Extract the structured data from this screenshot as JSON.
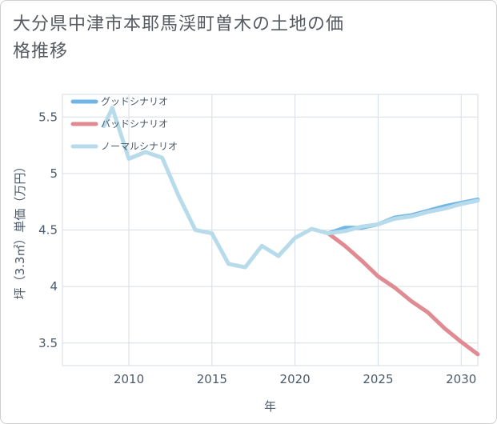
{
  "chart_data": {
    "type": "line",
    "title": "大分県中津市本耶馬渓町曽木の土地の価格推移",
    "xlabel": "年",
    "ylabel": "坪（3.3㎡）単価（万円）",
    "xlim": [
      2006,
      2031
    ],
    "ylim": [
      3.3,
      5.7
    ],
    "x_ticks": [
      "2010",
      "2015",
      "2020",
      "2025",
      "2030"
    ],
    "y_ticks": [
      "3.5",
      "4",
      "4.5",
      "5",
      "5.5"
    ],
    "grid": true,
    "legend_position": "top-left",
    "series": [
      {
        "name": "グッドシナリオ",
        "color": "#6fb5e6",
        "x": [
          2022,
          2023,
          2024,
          2025,
          2026,
          2027,
          2028,
          2029,
          2030,
          2031
        ],
        "y": [
          4.47,
          4.52,
          4.52,
          4.55,
          4.61,
          4.63,
          4.67,
          4.71,
          4.74,
          4.77
        ]
      },
      {
        "name": "バッドシナリオ",
        "color": "#e08a92",
        "x": [
          2022,
          2023,
          2024,
          2025,
          2026,
          2027,
          2028,
          2029,
          2030,
          2031
        ],
        "y": [
          4.47,
          4.36,
          4.23,
          4.09,
          3.99,
          3.87,
          3.77,
          3.63,
          3.51,
          3.4
        ]
      },
      {
        "name": "ノーマルシナリオ",
        "color": "#b7dbeb",
        "x": [
          2008.5,
          2009,
          2010,
          2011,
          2012,
          2013,
          2014,
          2015,
          2016,
          2017,
          2018,
          2019,
          2020,
          2021,
          2022,
          2023,
          2024,
          2025,
          2026,
          2027,
          2028,
          2029,
          2030,
          2031
        ],
        "y": [
          5.42,
          5.58,
          5.13,
          5.19,
          5.14,
          4.8,
          4.5,
          4.47,
          4.2,
          4.17,
          4.36,
          4.27,
          4.43,
          4.51,
          4.47,
          4.49,
          4.53,
          4.55,
          4.6,
          4.62,
          4.66,
          4.69,
          4.73,
          4.76
        ]
      }
    ]
  }
}
